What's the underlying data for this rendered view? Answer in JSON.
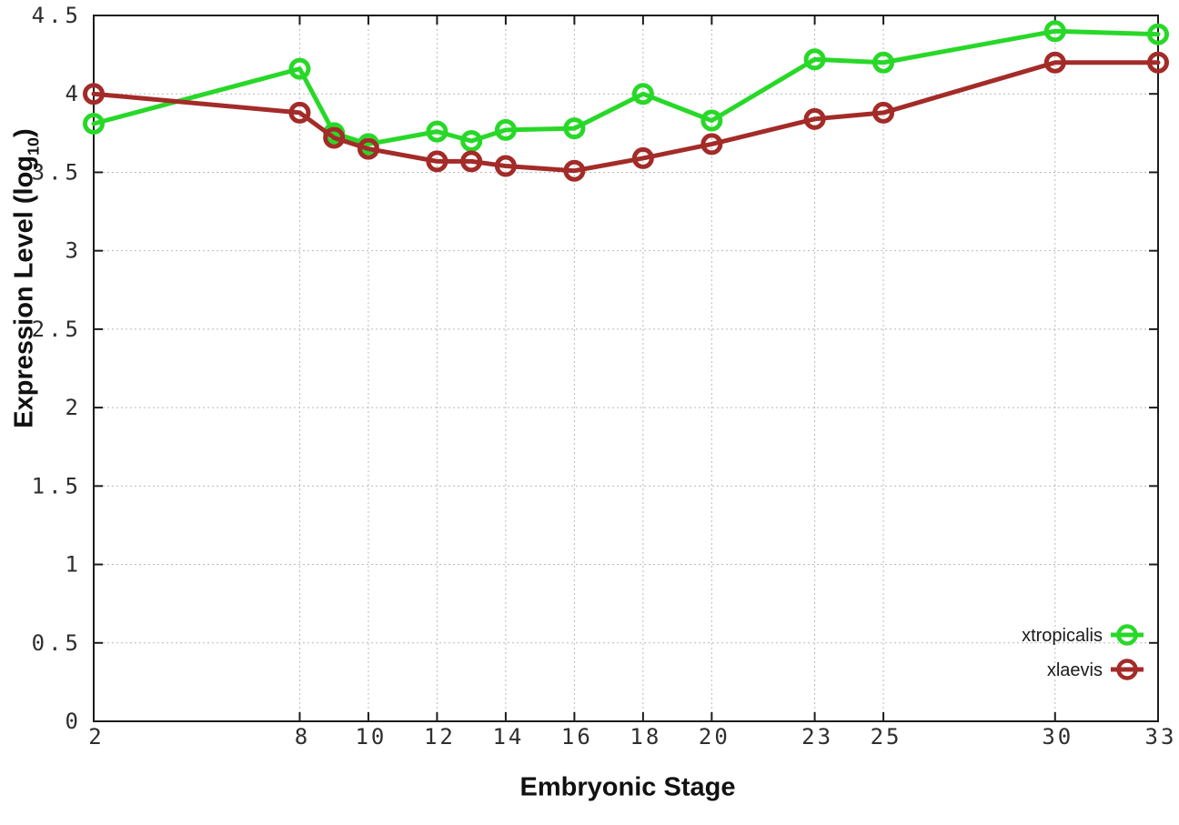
{
  "figure": {
    "title": "",
    "xlabel": "Embryonic Stage",
    "ylabel": "Expression Level (log10)",
    "ylabel_parts": {
      "prefix": "Expression Level (log",
      "subscript": "10",
      "suffix": ")"
    },
    "background_color": "#ffffff",
    "border_color": "#1c1c1c",
    "grid_color": "#b9b9b9",
    "tick_label_color": "#2e2e2e",
    "legend_text_color": "#1a1a1a"
  },
  "chart_data": {
    "type": "line",
    "title": "",
    "xlabel": "Embryonic Stage",
    "ylabel": "Expression Level (log10)",
    "x": [
      2,
      8,
      9,
      10,
      12,
      13,
      14,
      16,
      18,
      20,
      23,
      25,
      30,
      33
    ],
    "series": [
      {
        "name": "xtropicalis",
        "color": "#28d828",
        "marker": "open-circle",
        "values": [
          3.81,
          4.16,
          3.75,
          3.68,
          3.76,
          3.7,
          3.77,
          3.78,
          4.0,
          3.83,
          4.22,
          4.2,
          4.4,
          4.38
        ]
      },
      {
        "name": "xlaevis",
        "color": "#a32b28",
        "marker": "open-circle",
        "values": [
          4.0,
          3.88,
          3.72,
          3.65,
          3.57,
          3.57,
          3.54,
          3.51,
          3.59,
          3.68,
          3.84,
          3.88,
          4.2,
          4.2
        ]
      }
    ],
    "x_ticks": [
      2,
      8,
      10,
      12,
      14,
      16,
      18,
      20,
      23,
      25,
      30,
      33
    ],
    "y_ticks": [
      0,
      0.5,
      1,
      1.5,
      2,
      2.5,
      3,
      3.5,
      4,
      4.5
    ],
    "xlim": [
      2,
      33
    ],
    "ylim": [
      0,
      4.5
    ],
    "grid": true,
    "grid_style": "dotted",
    "legend_position": "inside-bottom-right",
    "legend_entries": [
      "xtropicalis",
      "xlaevis"
    ]
  }
}
